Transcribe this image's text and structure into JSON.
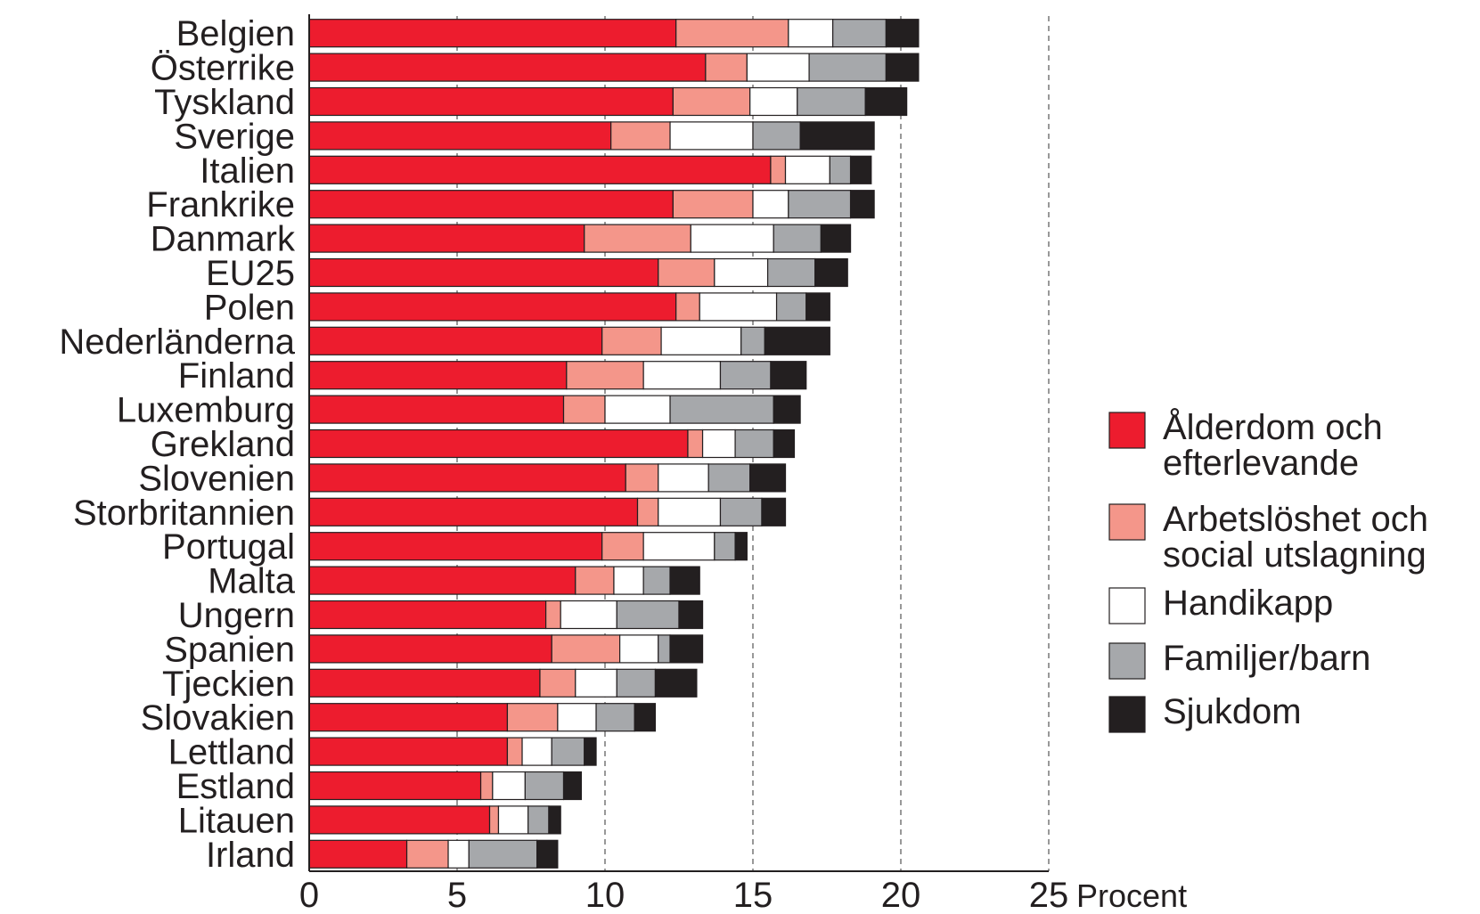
{
  "chart_data": {
    "type": "bar",
    "orientation": "horizontal",
    "stacked": true,
    "categories": [
      "Belgien",
      "Österrike",
      "Tyskland",
      "Sverige",
      "Italien",
      "Frankrike",
      "Danmark",
      "EU25",
      "Polen",
      "Nederländerna",
      "Finland",
      "Luxemburg",
      "Grekland",
      "Slovenien",
      "Storbritannien",
      "Portugal",
      "Malta",
      "Ungern",
      "Spanien",
      "Tjeckien",
      "Slovakien",
      "Lettland",
      "Estland",
      "Litauen",
      "Irland"
    ],
    "series": [
      {
        "name": "Ålderdom och efterlevande",
        "color": "#ed1c2e",
        "values": [
          12.4,
          13.4,
          12.3,
          10.2,
          15.6,
          12.3,
          9.3,
          11.8,
          12.4,
          9.9,
          8.7,
          8.6,
          12.8,
          10.7,
          11.1,
          9.9,
          9.0,
          8.0,
          8.2,
          7.8,
          6.7,
          6.7,
          5.8,
          6.1,
          3.3
        ]
      },
      {
        "name": "Arbetslöshet och social utslagning",
        "color": "#f4968a",
        "values": [
          3.8,
          1.4,
          2.6,
          2.0,
          0.5,
          2.7,
          3.6,
          1.9,
          0.8,
          2.0,
          2.6,
          1.4,
          0.5,
          1.1,
          0.7,
          1.4,
          1.3,
          0.5,
          2.3,
          1.2,
          1.7,
          0.5,
          0.4,
          0.3,
          1.4
        ]
      },
      {
        "name": "Handikapp",
        "color": "#ffffff",
        "values": [
          1.5,
          2.1,
          1.6,
          2.8,
          1.5,
          1.2,
          2.8,
          1.8,
          2.6,
          2.7,
          2.6,
          2.2,
          1.1,
          1.7,
          2.1,
          2.4,
          1.0,
          1.9,
          1.3,
          1.4,
          1.3,
          1.0,
          1.1,
          1.0,
          0.7
        ]
      },
      {
        "name": "Familjer/barn",
        "color": "#a6a8ab",
        "values": [
          1.8,
          2.6,
          2.3,
          1.6,
          0.7,
          2.1,
          1.6,
          1.6,
          1.0,
          0.8,
          1.7,
          3.5,
          1.3,
          1.4,
          1.4,
          0.7,
          0.9,
          2.1,
          0.4,
          1.3,
          1.3,
          1.1,
          1.3,
          0.7,
          2.3
        ]
      },
      {
        "name": "Sjukdom",
        "color": "#231f20",
        "values": [
          1.1,
          1.1,
          1.4,
          2.5,
          0.7,
          0.8,
          1.0,
          1.1,
          0.8,
          2.2,
          1.2,
          0.9,
          0.7,
          1.2,
          0.8,
          0.4,
          1.0,
          0.8,
          1.1,
          1.4,
          0.7,
          0.4,
          0.6,
          0.4,
          0.7
        ]
      }
    ],
    "x_ticks": [
      "0",
      "5",
      "10",
      "15",
      "20",
      "25"
    ],
    "xlim": [
      0,
      25
    ],
    "x_unit_label": "Procent",
    "grid": "vertical dashed",
    "legend_position": "right"
  }
}
